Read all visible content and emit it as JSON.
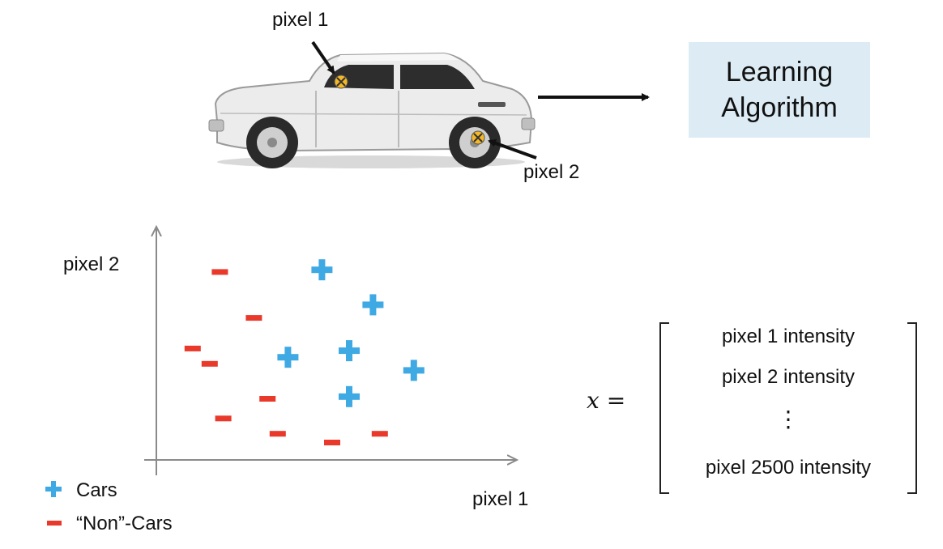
{
  "car_section": {
    "pixel1_label": "pixel 1",
    "pixel2_label": "pixel 2"
  },
  "algorithm": {
    "line1": "Learning",
    "line2": "Algorithm"
  },
  "plot": {
    "ylabel": "pixel 2",
    "xlabel": "pixel 1",
    "xlim": [
      0,
      100
    ],
    "ylim": [
      0,
      100
    ]
  },
  "legend": {
    "cars_label": "Cars",
    "noncars_label": "“Non”-Cars"
  },
  "vector": {
    "variable": "x",
    "equals": "=",
    "row1": "pixel 1 intensity",
    "row2": "pixel 2 intensity",
    "vdots": "⋮",
    "row_last": "pixel 2500 intensity"
  },
  "colors": {
    "car": "#3fa9e3",
    "noncar": "#e8392b",
    "axis": "#8a8a8a",
    "marker": "#f4b827"
  },
  "chart_data": {
    "type": "scatter",
    "title": "",
    "xlabel": "pixel 1",
    "ylabel": "pixel 2",
    "xlim": [
      0,
      100
    ],
    "ylim": [
      0,
      100
    ],
    "series": [
      {
        "name": "Cars",
        "marker": "plus",
        "points": [
          [
            47,
            84
          ],
          [
            62,
            68
          ],
          [
            37,
            44
          ],
          [
            55,
            47
          ],
          [
            74,
            38
          ],
          [
            55,
            26
          ]
        ]
      },
      {
        "name": "“Non”-Cars",
        "marker": "minus",
        "points": [
          [
            17,
            83
          ],
          [
            27,
            62
          ],
          [
            9,
            48
          ],
          [
            14,
            41
          ],
          [
            31,
            25
          ],
          [
            18,
            16
          ],
          [
            34,
            9
          ],
          [
            50,
            5
          ],
          [
            64,
            9
          ]
        ]
      }
    ]
  }
}
